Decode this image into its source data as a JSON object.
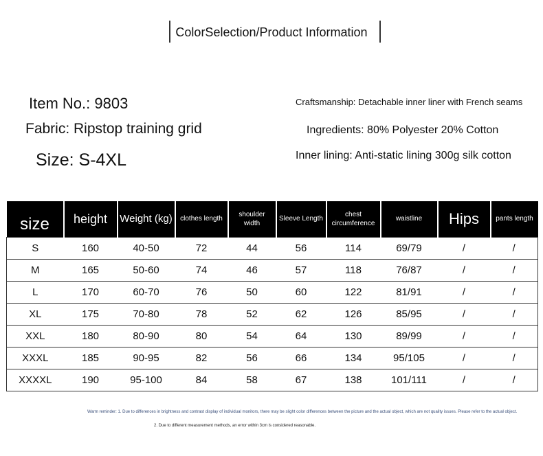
{
  "header": {
    "title": "ColorSelection/Product Information"
  },
  "info": {
    "item_no": "Item No.: 9803",
    "fabric": "Fabric: Ripstop training grid",
    "size": "Size: S-4XL",
    "craftsmanship": "Craftsmanship: Detachable inner liner with French seams",
    "ingredients": "Ingredients: 80% Polyester 20% Cotton",
    "inner_lining": "Inner lining: Anti-static lining 300g silk cotton"
  },
  "table": {
    "columns": [
      "size",
      "height",
      "Weight (kg)",
      "clothes length",
      "shoulder width",
      "Sleeve Length",
      "chest circumference",
      "waistline",
      "Hips",
      "pants length"
    ],
    "rows": [
      [
        "S",
        160,
        "40-50",
        72,
        44,
        56,
        114,
        "69/79",
        "/",
        "/"
      ],
      [
        "M",
        165,
        "50-60",
        74,
        46,
        57,
        118,
        "76/87",
        "/",
        "/"
      ],
      [
        "L",
        170,
        "60-70",
        76,
        50,
        60,
        122,
        "81/91",
        "/",
        "/"
      ],
      [
        "XL",
        175,
        "70-80",
        78,
        52,
        62,
        126,
        "85/95",
        "/",
        "/"
      ],
      [
        "XXL",
        180,
        "80-90",
        80,
        54,
        64,
        130,
        "89/99",
        "/",
        "/"
      ],
      [
        "XXXL",
        185,
        "90-95",
        82,
        56,
        66,
        134,
        "95/105",
        "/",
        "/"
      ],
      [
        "XXXXL",
        190,
        "95-100",
        84,
        58,
        67,
        138,
        "101/111",
        "/",
        "/"
      ]
    ]
  },
  "notes": [
    "Warm reminder: 1. Due to differences in brightness and contrast display of individual monitors, there may be slight color differences between the picture and the actual object, which are not quality issues. Please refer to the actual object.",
    "2. Due to different measurement methods, an error within 3cm is considered reasonable."
  ]
}
